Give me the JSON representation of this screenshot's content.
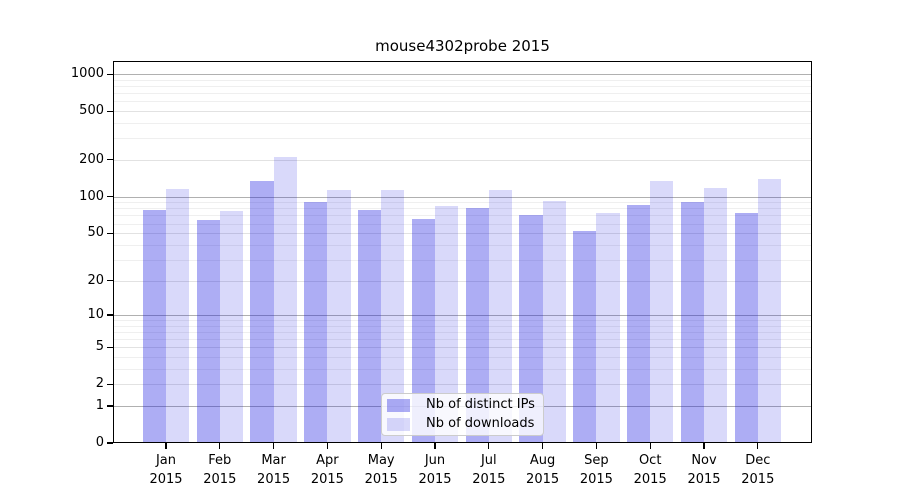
{
  "title": "mouse4302probe 2015",
  "chart_data": {
    "type": "bar",
    "title": "mouse4302probe 2015",
    "y_scale": "log10(1+v)",
    "ylim": [
      0,
      1280
    ],
    "y_ticks": [
      0,
      1,
      2,
      5,
      10,
      20,
      50,
      100,
      200,
      500,
      1000
    ],
    "y_minor_gridlines": [
      3,
      4,
      6,
      7,
      8,
      9,
      30,
      40,
      60,
      70,
      80,
      90,
      300,
      400,
      600,
      700,
      800,
      900
    ],
    "categories": [
      "Jan",
      "Feb",
      "Mar",
      "Apr",
      "May",
      "Jun",
      "Jul",
      "Aug",
      "Sep",
      "Oct",
      "Nov",
      "Dec"
    ],
    "year_label": "2015",
    "grid": true,
    "legend_position": "lower-center",
    "series": [
      {
        "name": "Nb of distinct IPs",
        "values": [
          77,
          64,
          135,
          91,
          77,
          66,
          80,
          70,
          52,
          85,
          91,
          73
        ],
        "fill": "rgba(20,20,224,0.35)"
      },
      {
        "name": "Nb of downloads",
        "values": [
          115,
          76,
          210,
          114,
          114,
          84,
          114,
          92,
          73,
          135,
          118,
          140
        ],
        "fill": "rgba(20,20,224,0.16)"
      }
    ]
  },
  "colors": {
    "grid_major": "#b0b0b0",
    "grid_mid": "#e2e2e2",
    "grid_minor": "#efefef",
    "axis": "#000000",
    "legend_border": "#cccccc"
  }
}
